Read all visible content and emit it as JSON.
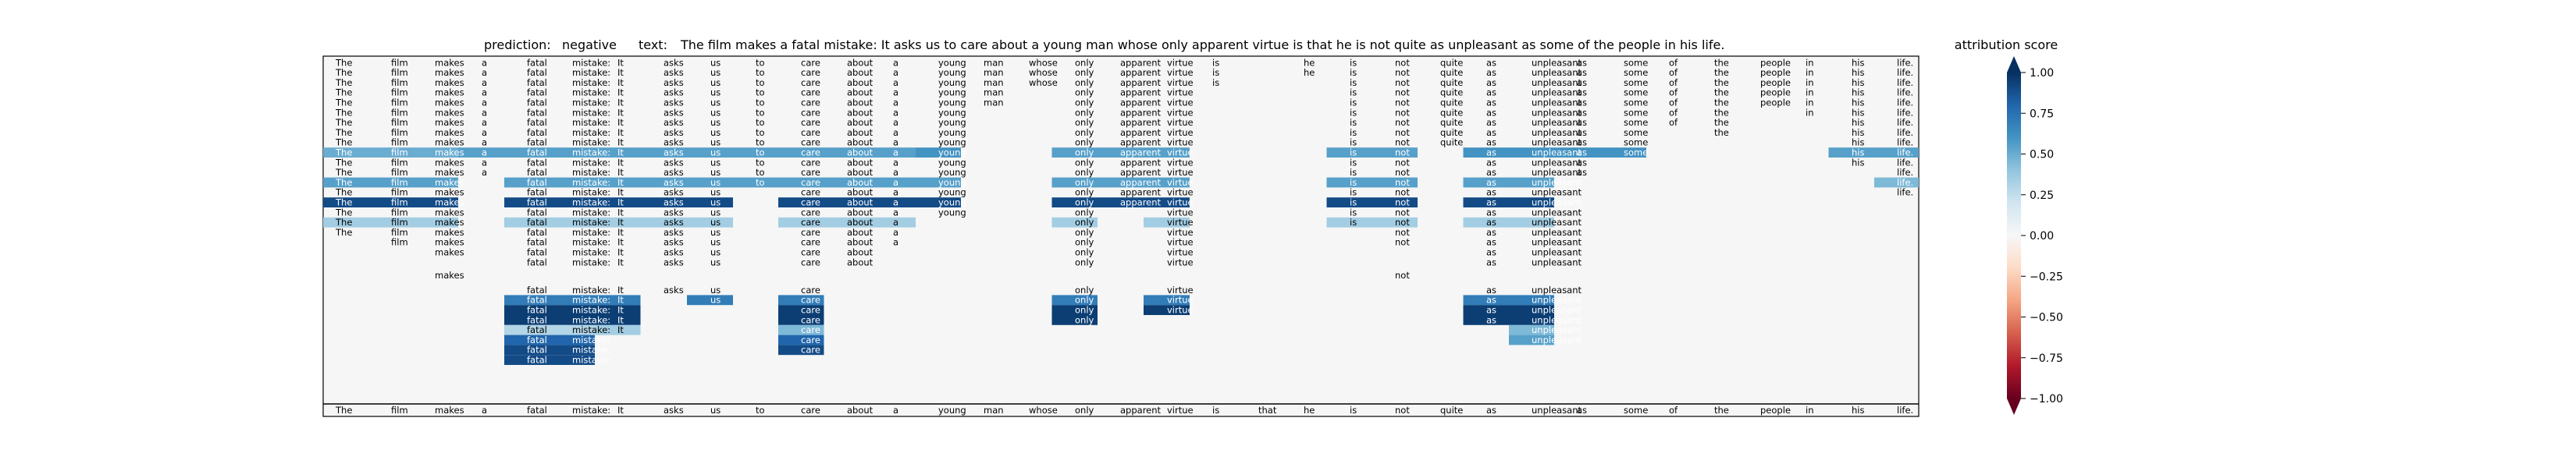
{
  "chart_data": {
    "type": "heatmap",
    "title_prefix": "prediction:",
    "prediction": "negative",
    "text_prefix": "text:",
    "text": "The film makes a fatal mistake: It asks us to care about a young man whose only apparent virtue is that he is not quite as unpleasant as some of the people in his life.",
    "tokens": [
      "The",
      "film",
      "makes",
      "a",
      "fatal",
      "mistake:",
      "It",
      "asks",
      "us",
      "to",
      "care",
      "about",
      "a",
      "young",
      "man",
      "whose",
      "only",
      "apparent",
      "virtue",
      "is",
      "that",
      "he",
      "is",
      "not",
      "quite",
      "as",
      "unpleasant",
      "as",
      "some",
      "of",
      "the",
      "people",
      "in",
      "his",
      "life."
    ],
    "colorbar": {
      "label": "attribution score",
      "ticks": [
        "1.00",
        "0.75",
        "0.50",
        "0.25",
        "0.00",
        "−0.25",
        "−0.50",
        "−0.75",
        "−1.00"
      ],
      "range": [
        -1.0,
        1.0
      ]
    },
    "rows": [
      {
        "present": [
          0,
          1,
          2,
          3,
          4,
          5,
          6,
          7,
          8,
          9,
          10,
          11,
          12,
          13,
          14,
          15,
          16,
          17,
          18,
          19,
          21,
          22,
          23,
          24,
          25,
          26,
          27,
          28,
          29,
          30,
          31,
          32,
          33,
          34
        ],
        "scores": {}
      },
      {
        "present": [
          0,
          1,
          2,
          3,
          4,
          5,
          6,
          7,
          8,
          9,
          10,
          11,
          12,
          13,
          14,
          15,
          16,
          17,
          18,
          19,
          21,
          22,
          23,
          24,
          25,
          26,
          27,
          28,
          29,
          30,
          31,
          32,
          33,
          34
        ],
        "scores": {}
      },
      {
        "present": [
          0,
          1,
          2,
          3,
          4,
          5,
          6,
          7,
          8,
          9,
          10,
          11,
          12,
          13,
          14,
          15,
          16,
          17,
          18,
          19,
          22,
          23,
          24,
          25,
          26,
          27,
          28,
          29,
          30,
          31,
          32,
          33,
          34
        ],
        "scores": {}
      },
      {
        "present": [
          0,
          1,
          2,
          3,
          4,
          5,
          6,
          7,
          8,
          9,
          10,
          11,
          12,
          13,
          14,
          16,
          17,
          18,
          22,
          23,
          24,
          25,
          26,
          27,
          28,
          29,
          30,
          31,
          32,
          33,
          34
        ],
        "scores": {}
      },
      {
        "present": [
          0,
          1,
          2,
          3,
          4,
          5,
          6,
          7,
          8,
          9,
          10,
          11,
          12,
          13,
          14,
          16,
          17,
          18,
          22,
          23,
          24,
          25,
          26,
          27,
          28,
          29,
          30,
          31,
          32,
          33,
          34
        ],
        "scores": {}
      },
      {
        "present": [
          0,
          1,
          2,
          3,
          4,
          5,
          6,
          7,
          8,
          9,
          10,
          11,
          12,
          13,
          16,
          17,
          18,
          22,
          23,
          24,
          25,
          26,
          27,
          28,
          29,
          30,
          32,
          33,
          34
        ],
        "scores": {}
      },
      {
        "present": [
          0,
          1,
          2,
          3,
          4,
          5,
          6,
          7,
          8,
          9,
          10,
          11,
          12,
          13,
          16,
          17,
          18,
          22,
          23,
          24,
          25,
          26,
          27,
          28,
          29,
          30,
          33,
          34
        ],
        "scores": {}
      },
      {
        "present": [
          0,
          1,
          2,
          3,
          4,
          5,
          6,
          7,
          8,
          9,
          10,
          11,
          12,
          13,
          16,
          17,
          18,
          22,
          23,
          24,
          25,
          26,
          27,
          28,
          30,
          33,
          34
        ],
        "scores": {}
      },
      {
        "present": [
          0,
          1,
          2,
          3,
          4,
          5,
          6,
          7,
          8,
          9,
          10,
          11,
          12,
          13,
          16,
          17,
          18,
          22,
          23,
          24,
          25,
          26,
          27,
          28,
          33,
          34
        ],
        "scores": {}
      },
      {
        "present": [
          0,
          1,
          2,
          3,
          4,
          5,
          6,
          7,
          8,
          9,
          10,
          11,
          12,
          13,
          16,
          17,
          18,
          22,
          23,
          25,
          26,
          27,
          28,
          33,
          34
        ],
        "scores": {
          "0": 0.5,
          "1": 0.5,
          "2": 0.5,
          "3": 0.55,
          "4": 0.55,
          "5": 0.55,
          "6": 0.55,
          "7": 0.55,
          "8": 0.55,
          "9": 0.55,
          "10": 0.55,
          "11": 0.55,
          "12": 0.55,
          "13": 0.6,
          "16": 0.55,
          "17": 0.55,
          "18": 0.55,
          "22": 0.55,
          "23": 0.55,
          "25": 0.6,
          "26": 0.6,
          "27": 0.6,
          "28": 0.6,
          "33": 0.55,
          "34": 0.55
        }
      },
      {
        "present": [
          0,
          1,
          2,
          3,
          4,
          5,
          6,
          7,
          8,
          9,
          10,
          11,
          12,
          13,
          16,
          17,
          18,
          22,
          23,
          25,
          26,
          27,
          33,
          34
        ],
        "scores": {}
      },
      {
        "present": [
          0,
          1,
          2,
          3,
          4,
          5,
          6,
          7,
          8,
          9,
          10,
          11,
          12,
          13,
          16,
          17,
          18,
          22,
          23,
          25,
          26,
          27,
          34
        ],
        "scores": {}
      },
      {
        "present": [
          0,
          1,
          2,
          4,
          5,
          6,
          7,
          8,
          9,
          10,
          11,
          12,
          13,
          16,
          17,
          18,
          22,
          23,
          25,
          26,
          34
        ],
        "scores": {
          "0": 0.55,
          "1": 0.55,
          "2": 0.55,
          "4": 0.55,
          "5": 0.55,
          "6": 0.55,
          "7": 0.55,
          "8": 0.55,
          "9": 0.55,
          "10": 0.55,
          "11": 0.55,
          "12": 0.55,
          "13": 0.55,
          "16": 0.55,
          "17": 0.55,
          "18": 0.55,
          "22": 0.55,
          "23": 0.55,
          "25": 0.55,
          "26": 0.55,
          "34": 0.45
        }
      },
      {
        "present": [
          0,
          1,
          2,
          4,
          5,
          6,
          7,
          8,
          10,
          11,
          12,
          13,
          16,
          17,
          18,
          22,
          23,
          25,
          26,
          34
        ],
        "scores": {}
      },
      {
        "present": [
          0,
          1,
          2,
          4,
          5,
          6,
          7,
          8,
          10,
          11,
          12,
          13,
          16,
          17,
          18,
          22,
          23,
          25,
          26
        ],
        "scores": {
          "0": 0.9,
          "1": 0.9,
          "2": 0.9,
          "4": 0.9,
          "5": 0.9,
          "6": 0.9,
          "7": 0.9,
          "8": 0.9,
          "10": 0.9,
          "11": 0.9,
          "12": 0.9,
          "13": 0.9,
          "16": 0.9,
          "17": 0.9,
          "18": 0.9,
          "22": 0.9,
          "23": 0.9,
          "25": 0.9,
          "26": 0.9
        }
      },
      {
        "present": [
          0,
          1,
          2,
          4,
          5,
          6,
          7,
          8,
          10,
          11,
          12,
          13,
          16,
          18,
          22,
          23,
          25,
          26
        ],
        "scores": {}
      },
      {
        "present": [
          0,
          1,
          2,
          4,
          5,
          6,
          7,
          8,
          10,
          11,
          12,
          16,
          18,
          22,
          23,
          25,
          26
        ],
        "scores": {
          "0": 0.35,
          "1": 0.35,
          "2": 0.35,
          "4": 0.35,
          "5": 0.35,
          "6": 0.35,
          "7": 0.35,
          "8": 0.35,
          "10": 0.35,
          "11": 0.35,
          "12": 0.35,
          "16": 0.35,
          "18": 0.35,
          "22": 0.35,
          "23": 0.35,
          "25": 0.35,
          "26": 0.35
        }
      },
      {
        "present": [
          0,
          1,
          2,
          4,
          5,
          6,
          7,
          8,
          10,
          11,
          12,
          16,
          18,
          23,
          25,
          26
        ],
        "scores": {}
      },
      {
        "present": [
          1,
          2,
          4,
          5,
          6,
          7,
          8,
          10,
          11,
          12,
          16,
          18,
          23,
          25,
          26
        ],
        "scores": {}
      },
      {
        "present": [
          2,
          4,
          5,
          6,
          7,
          8,
          10,
          11,
          16,
          18,
          25,
          26
        ],
        "scores": {}
      },
      {
        "present": [
          4,
          5,
          6,
          7,
          8,
          10,
          11,
          16,
          18,
          25,
          26
        ],
        "scores": {}
      },
      {
        "present": [
          2,
          23
        ],
        "scores": {}
      },
      {
        "present": [
          4,
          5,
          6,
          7,
          8,
          10,
          16,
          18,
          25,
          26
        ],
        "scores": {}
      },
      {
        "present": [
          4,
          5,
          6,
          8,
          10,
          16,
          18,
          25,
          26
        ],
        "scores": {
          "4": 0.7,
          "5": 0.7,
          "6": 0.7,
          "8": 0.7,
          "10": 0.7,
          "16": 0.7,
          "18": 0.7,
          "25": 0.7,
          "26": 0.7
        }
      },
      {
        "present": [
          4,
          5,
          6,
          10,
          16,
          18,
          25,
          26
        ],
        "scores": {
          "4": 0.95,
          "5": 0.95,
          "6": 0.95,
          "10": 0.95,
          "16": 0.95,
          "18": 0.95,
          "25": 0.95,
          "26": 0.95
        }
      },
      {
        "present": [
          4,
          5,
          6,
          10,
          16,
          25,
          26
        ],
        "scores": {
          "4": 0.95,
          "5": 0.95,
          "6": 0.95,
          "10": 0.95,
          "16": 0.95,
          "25": 0.95,
          "26": 0.95
        }
      },
      {
        "present": [
          4,
          5,
          6,
          10,
          26
        ],
        "scores": {
          "4": 0.3,
          "5": 0.3,
          "6": 0.35,
          "10": 0.45,
          "26": 0.45
        }
      },
      {
        "present": [
          4,
          5,
          10,
          26
        ],
        "scores": {
          "4": 0.8,
          "5": 0.8,
          "10": 0.8,
          "26": 0.55
        }
      },
      {
        "present": [
          4,
          5,
          10
        ],
        "scores": {
          "4": 0.9,
          "5": 0.9,
          "10": 0.9
        }
      },
      {
        "present": [
          4,
          5
        ],
        "scores": {
          "4": 0.9,
          "5": 0.9
        }
      }
    ],
    "bottom_axis_tokens": [
      "The",
      "film",
      "makes",
      "a",
      "fatal",
      "mistake:",
      "It",
      "asks",
      "us",
      "to",
      "care",
      "about",
      "a",
      "young",
      "man",
      "whose",
      "only",
      "apparent",
      "virtue",
      "is",
      "that",
      "he",
      "is",
      "not",
      "quite",
      "as",
      "unpleasant",
      "as",
      "some",
      "of",
      "the",
      "people",
      "in",
      "his",
      "life."
    ]
  }
}
